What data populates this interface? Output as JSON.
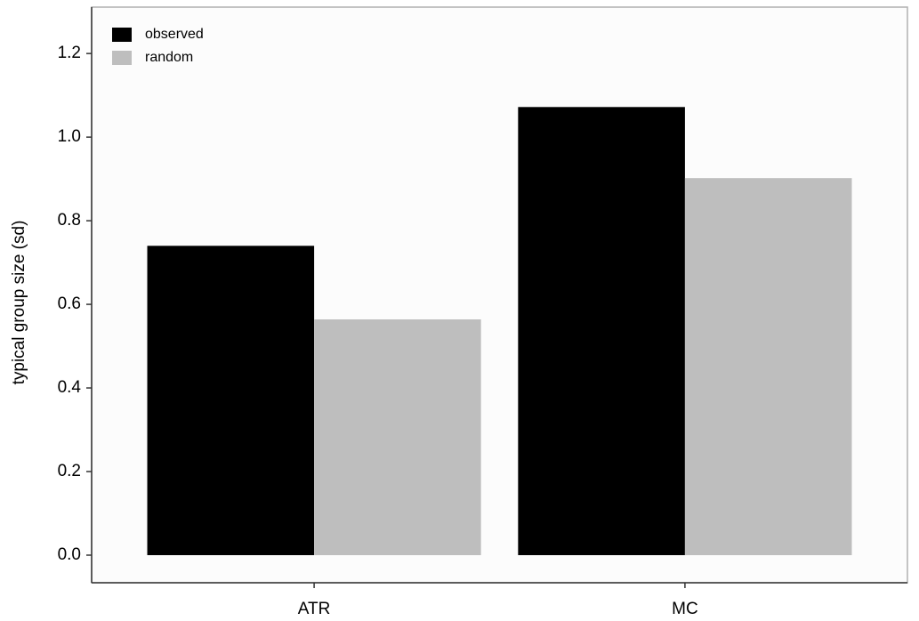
{
  "chart_data": {
    "type": "bar",
    "y_label": "typical group size (sd)",
    "categories": [
      "ATR",
      "MC"
    ],
    "series": [
      {
        "name": "observed",
        "color": "#000000",
        "values": [
          0.74,
          1.072
        ]
      },
      {
        "name": "random",
        "color": "#bebebe",
        "values": [
          0.564,
          0.902
        ]
      }
    ],
    "ylim": [
      -0.066,
      1.311
    ],
    "yticks": [
      {
        "value": 0,
        "label": "0.0"
      },
      {
        "value": 0.2,
        "label": "0.2"
      },
      {
        "value": 0.4,
        "label": "0.4"
      },
      {
        "value": 0.6,
        "label": "0.6"
      },
      {
        "value": 0.8,
        "label": "0.8"
      },
      {
        "value": 1,
        "label": "1.0"
      },
      {
        "value": 1.2,
        "label": "1.2"
      }
    ],
    "grid": false,
    "legend": "top-left"
  }
}
